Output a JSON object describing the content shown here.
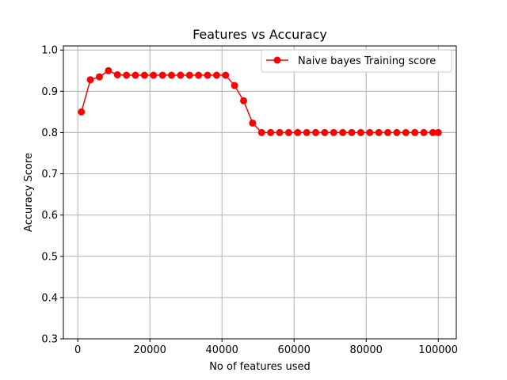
{
  "chart_data": {
    "type": "line",
    "title": "Features vs Accuracy",
    "xlabel": "No of features used",
    "ylabel": "Accuracy Score",
    "xlim": [
      -4000,
      105000
    ],
    "ylim": [
      0.3,
      1.01
    ],
    "xticks": [
      0,
      20000,
      40000,
      60000,
      80000,
      100000
    ],
    "yticks": [
      0.3,
      0.4,
      0.5,
      0.6,
      0.7,
      0.8,
      0.9,
      1.0
    ],
    "xtick_labels": [
      "0",
      "20000",
      "40000",
      "60000",
      "80000",
      "100000"
    ],
    "ytick_labels": [
      "0.3",
      "0.4",
      "0.5",
      "0.6",
      "0.7",
      "0.8",
      "0.9",
      "1.0"
    ],
    "grid": true,
    "legend_position": "top-right",
    "series": [
      {
        "name": "Naive bayes Training score",
        "color": "#ff0000",
        "marker": "circle",
        "x": [
          1000,
          3500,
          6000,
          8500,
          11000,
          13500,
          16000,
          18500,
          21000,
          23500,
          26000,
          28500,
          31000,
          33500,
          36000,
          38500,
          41000,
          43500,
          46000,
          48500,
          51000,
          53500,
          56000,
          58500,
          61000,
          63500,
          66000,
          68500,
          71000,
          73500,
          76000,
          78500,
          81000,
          83500,
          86000,
          88500,
          91000,
          93500,
          96000,
          98500,
          100000
        ],
        "y": [
          0.85,
          0.928,
          0.935,
          0.95,
          0.94,
          0.939,
          0.939,
          0.939,
          0.939,
          0.939,
          0.939,
          0.939,
          0.939,
          0.939,
          0.939,
          0.939,
          0.939,
          0.914,
          0.877,
          0.823,
          0.8,
          0.8,
          0.8,
          0.8,
          0.8,
          0.8,
          0.8,
          0.8,
          0.8,
          0.8,
          0.8,
          0.8,
          0.8,
          0.8,
          0.8,
          0.8,
          0.8,
          0.8,
          0.8,
          0.8,
          0.8
        ]
      }
    ]
  }
}
